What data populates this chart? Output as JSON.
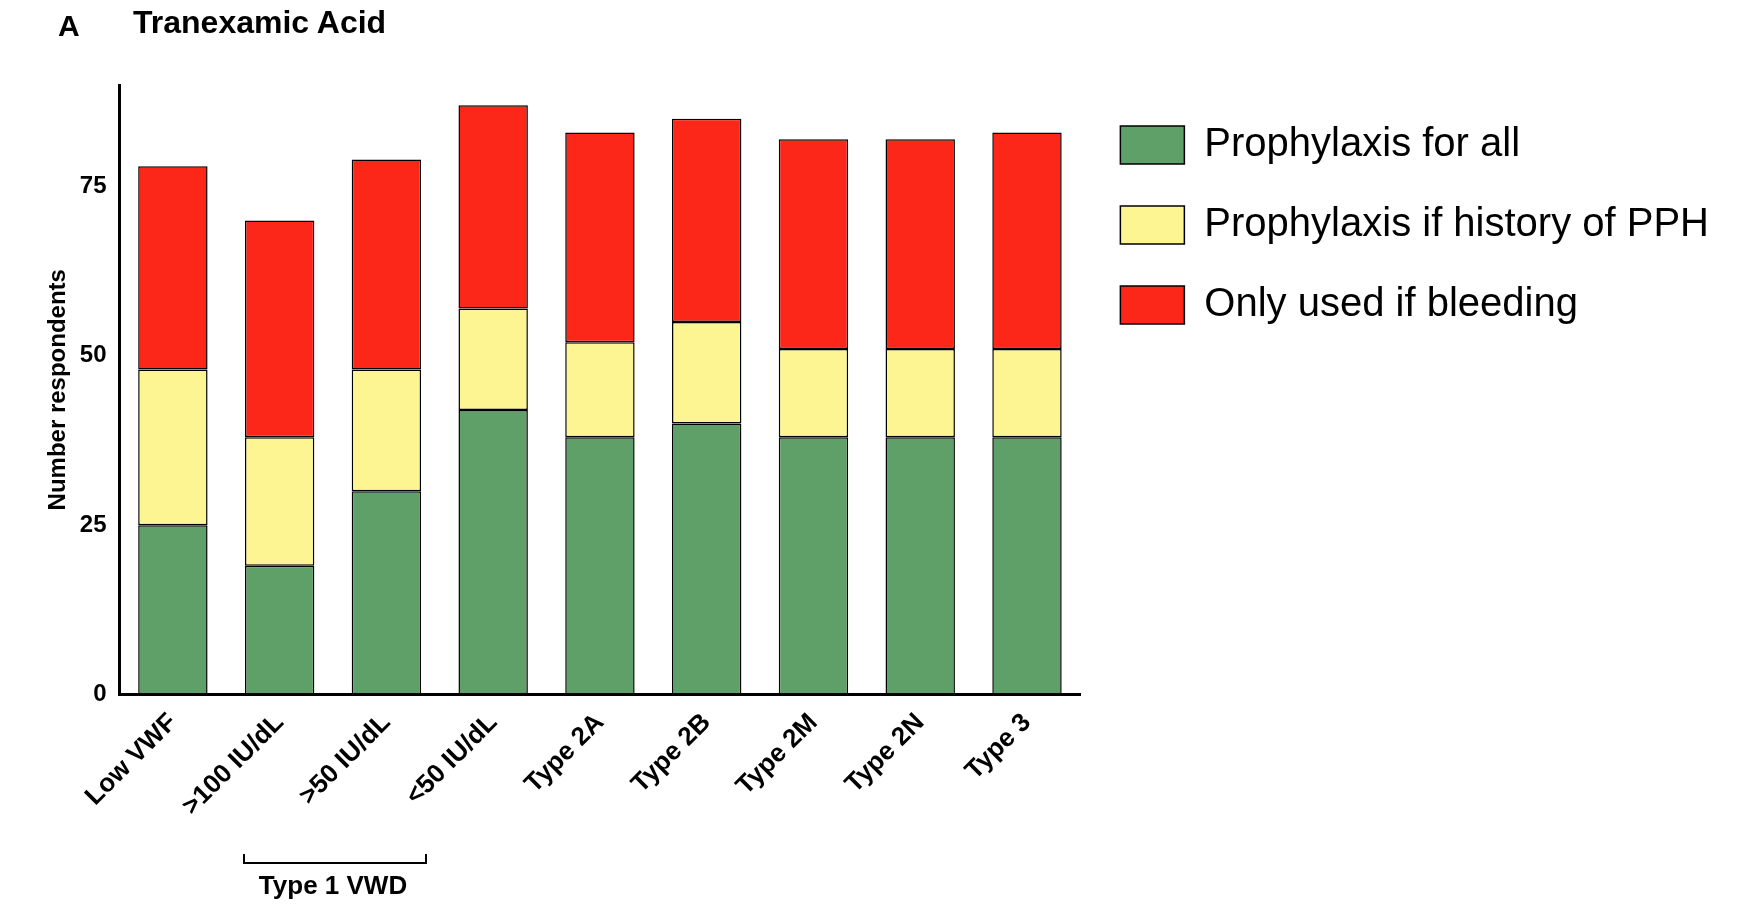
{
  "chart_data": {
    "type": "bar",
    "title": "Tranexamic Acid",
    "ylabel": "Number respondents",
    "stacked": true,
    "legend": "right",
    "grid": false,
    "categories": [
      "Low VWF",
      ">100 IU/dL",
      ">50 IU/dL",
      "<50 IU/dL",
      "Type 2A",
      "Type 2B",
      "Type 2M",
      "Type 2N",
      "Type 3"
    ],
    "series": [
      {
        "name": "Prophylaxis for all",
        "color": "#5fa068",
        "values": [
          25,
          19,
          30,
          42,
          38,
          40,
          38,
          38,
          38
        ]
      },
      {
        "name": "Prophylaxis if history of PPH",
        "color": "#fdf592",
        "values": [
          23,
          19,
          18,
          15,
          14,
          15,
          13,
          13,
          13
        ]
      },
      {
        "name": "Only used if bleeding",
        "color": "#fc2719",
        "values": [
          30,
          32,
          31,
          30,
          31,
          30,
          31,
          31,
          32
        ]
      }
    ],
    "ylim": [
      0,
      90
    ],
    "yticks": [
      0,
      25,
      50,
      75
    ],
    "annotations": [
      "A",
      "Type 1 VWD"
    ]
  }
}
